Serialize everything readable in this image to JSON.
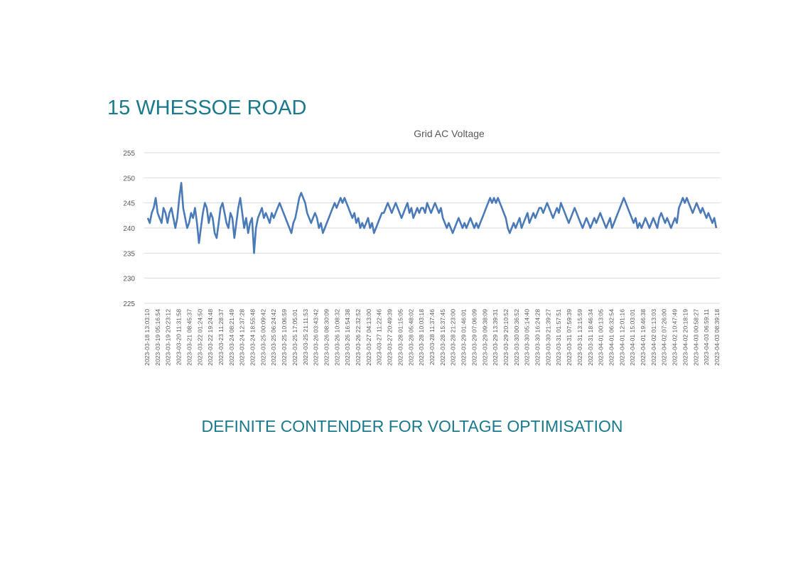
{
  "page": {
    "heading": "15 WHESSOE ROAD",
    "footer": "DEFINITE CONTENDER FOR VOLTAGE OPTIMISATION"
  },
  "colors": {
    "heading": "#1a7a8c",
    "series": "#4a7ab8",
    "grid": "#d9d9d9",
    "axis_text": "#595959"
  },
  "chart_data": {
    "type": "line",
    "title": "Grid AC Voltage",
    "xlabel": "",
    "ylabel": "",
    "ylim": [
      225,
      255
    ],
    "yticks": [
      225,
      230,
      235,
      240,
      245,
      250,
      255
    ],
    "grid": true,
    "legend": "none",
    "x_tick_labels": [
      "2023-03-18 13:03:10",
      "2023-03-19 05:16:54",
      "2023-03-19 20:23:12",
      "2023-03-20 11:31:58",
      "2023-03-21 08:45:37",
      "2023-03-22 01:24:50",
      "2023-03-22 19:24:48",
      "2023-03-23 11:28:37",
      "2023-03-24 08:21:49",
      "2023-03-24 12:37:28",
      "2023-03-24 18:55:48",
      "2023-03-25 00:09:42",
      "2023-03-25 06:24:42",
      "2023-03-25 10:06:59",
      "2023-03-25 17:05:01",
      "2023-03-25 21:11:53",
      "2023-03-26 03:43:42",
      "2023-03-26 08:30:09",
      "2023-03-26 10:08:32",
      "2023-03-26 16:54:38",
      "2023-03-26 22:32:52",
      "2023-03-27 04:13:00",
      "2023-03-27 11:22:46",
      "2023-03-27 20:49:39",
      "2023-03-28 01:15:05",
      "2023-03-28 05:48:02",
      "2023-03-28 10:03:18",
      "2023-03-28 11:37:46",
      "2023-03-28 15:37:45",
      "2023-03-28 21:23:00",
      "2023-03-29 01:46:01",
      "2023-03-29 07:06:09",
      "2023-03-29 09:38:09",
      "2023-03-29 13:39:31",
      "2023-03-29 20:10:52",
      "2023-03-30 00:36:52",
      "2023-03-30 05:14:40",
      "2023-03-30 16:24:28",
      "2023-03-30 21:39:27",
      "2023-03-31 01:57:51",
      "2023-03-31 07:59:39",
      "2023-03-31 13:15:59",
      "2023-03-31 18:46:34",
      "2023-04-01 00:13:05",
      "2023-04-01 06:32:54",
      "2023-04-01 12:01:16",
      "2023-04-01 15:03:01",
      "2023-04-01 19:46:38",
      "2023-04-02 01:13:03",
      "2023-04-02 07:26:00",
      "2023-04-02 10:47:49",
      "2023-04-02 20:18:19",
      "2023-04-03 00:58:27",
      "2023-04-03 06:59:11",
      "2023-04-03 08:39:18"
    ],
    "series": [
      {
        "color": "#4a7ab8",
        "values": [
          242,
          241,
          243,
          244,
          246,
          243,
          242,
          241,
          244,
          243,
          241,
          243,
          244,
          242,
          240,
          242,
          246,
          249,
          244,
          242,
          240,
          241,
          243,
          242,
          244,
          241,
          237,
          240,
          243,
          245,
          244,
          241,
          243,
          242,
          239,
          238,
          241,
          244,
          245,
          243,
          241,
          240,
          243,
          242,
          238,
          241,
          244,
          246,
          243,
          240,
          242,
          239,
          241,
          242,
          235,
          240,
          242,
          243,
          244,
          242,
          243,
          242,
          241,
          243,
          242,
          243,
          244,
          245,
          244,
          243,
          242,
          241,
          240,
          239,
          241,
          242,
          244,
          246,
          247,
          246,
          245,
          243,
          242,
          241,
          242,
          243,
          242,
          240,
          241,
          239,
          240,
          241,
          242,
          243,
          244,
          245,
          244,
          245,
          246,
          245,
          246,
          245,
          244,
          243,
          242,
          243,
          241,
          242,
          240,
          241,
          240,
          241,
          242,
          240,
          241,
          239,
          240,
          241,
          242,
          243,
          243,
          244,
          245,
          244,
          243,
          244,
          245,
          244,
          243,
          242,
          243,
          244,
          245,
          243,
          244,
          242,
          243,
          244,
          243,
          244,
          244,
          243,
          245,
          244,
          243,
          244,
          245,
          244,
          243,
          244,
          242,
          241,
          240,
          241,
          240,
          239,
          240,
          241,
          242,
          241,
          240,
          241,
          240,
          241,
          242,
          241,
          240,
          241,
          240,
          241,
          242,
          243,
          244,
          245,
          246,
          245,
          246,
          245,
          246,
          245,
          244,
          243,
          242,
          240,
          239,
          240,
          241,
          240,
          241,
          242,
          240,
          241,
          242,
          243,
          241,
          242,
          243,
          242,
          243,
          244,
          244,
          243,
          244,
          245,
          244,
          243,
          242,
          243,
          244,
          243,
          245,
          244,
          243,
          242,
          241,
          242,
          243,
          244,
          243,
          242,
          241,
          240,
          241,
          242,
          241,
          240,
          241,
          242,
          241,
          242,
          243,
          242,
          241,
          240,
          241,
          242,
          240,
          241,
          242,
          243,
          244,
          245,
          246,
          245,
          244,
          243,
          242,
          241,
          242,
          240,
          241,
          240,
          241,
          242,
          241,
          240,
          241,
          242,
          241,
          240,
          242,
          243,
          242,
          241,
          242,
          241,
          240,
          241,
          242,
          241,
          244,
          245,
          246,
          245,
          246,
          245,
          244,
          243,
          244,
          245,
          244,
          243,
          244,
          243,
          242,
          243,
          242,
          241,
          242,
          240
        ]
      }
    ]
  }
}
